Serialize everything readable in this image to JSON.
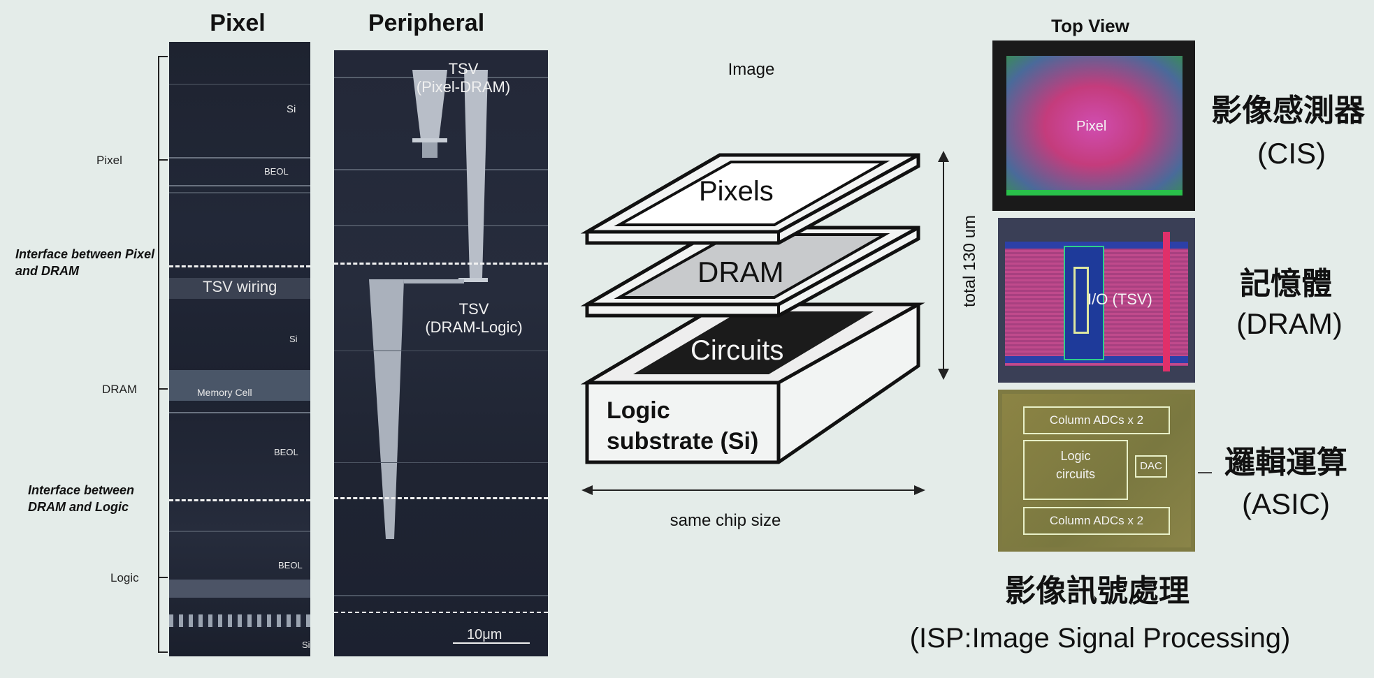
{
  "headers": {
    "pixel": "Pixel",
    "peripheral": "Peripheral",
    "image": "Image",
    "top_view": "Top View"
  },
  "left_labels": {
    "pixel": "Pixel",
    "interface1": "Interface between Pixel and DRAM",
    "dram": "DRAM",
    "interface2": "Interface between DRAM and Logic",
    "logic": "Logic"
  },
  "pixel_panel": {
    "si1": "Si",
    "beol1": "BEOL",
    "tsv_wiring": "TSV wiring",
    "si2": "Si",
    "memory_cell": "Memory Cell",
    "beol2": "BEOL",
    "beol3": "BEOL",
    "si3": "Si"
  },
  "peripheral_panel": {
    "tsv1_line1": "TSV",
    "tsv1_line2": "(Pixel-DRAM)",
    "tsv2_line1": "TSV",
    "tsv2_line2": "(DRAM-Logic)",
    "scale": "10μm"
  },
  "stack": {
    "pixels": "Pixels",
    "dram": "DRAM",
    "circuits": "Circuits",
    "logic_line1": "Logic",
    "logic_line2": "substrate (Si)",
    "thickness": "total 130 um",
    "chip_size": "same chip size"
  },
  "chips": {
    "cis_label": "Pixel",
    "dram_label": "I/O (TSV)",
    "adc_top": "Column ADCs x 2",
    "logic_line1": "Logic",
    "logic_line2": "circuits",
    "dac": "DAC",
    "adc_bottom": "Column ADCs x 2"
  },
  "right_labels": {
    "cis_cn": "影像感測器",
    "cis_en": "(CIS)",
    "dram_cn": "記憶體",
    "dram_en": "(DRAM)",
    "asic_cn": "邏輯運算",
    "asic_en": "(ASIC)",
    "isp_cn": "影像訊號處理",
    "isp_en": "(ISP:Image Signal Processing)"
  },
  "colors": {
    "background": "#e4ece9",
    "panel_dark": "#1c2130",
    "cis_magenta": "#c6377f",
    "dram_pink": "#b44a8a",
    "asic_olive": "#8c8444"
  }
}
